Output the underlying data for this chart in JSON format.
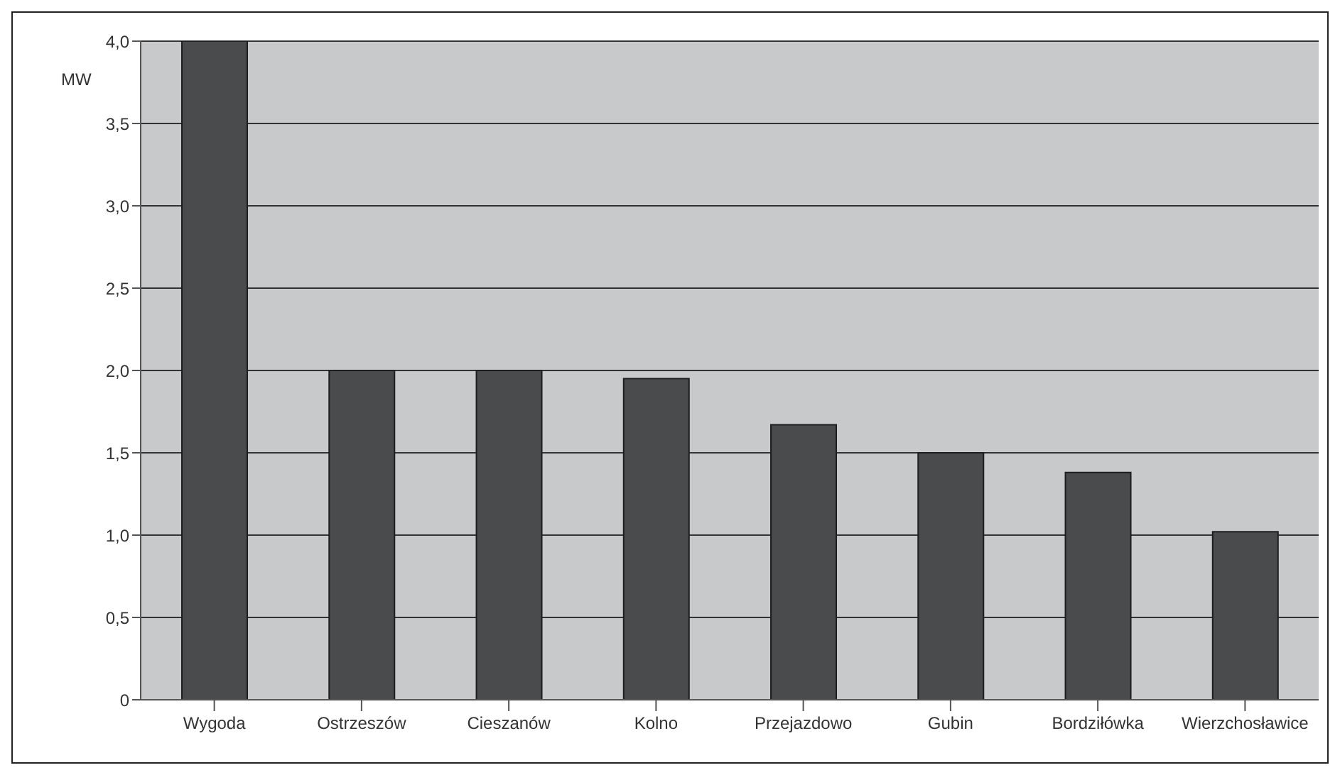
{
  "chart_data": {
    "type": "bar",
    "ylabel": "MW",
    "categories": [
      "Wygoda",
      "Ostrzeszów",
      "Cieszanów",
      "Kolno",
      "Przejazdowo",
      "Gubin",
      "Bordziłówka",
      "Wierzchosławice"
    ],
    "values": [
      4.0,
      2.0,
      2.0,
      1.95,
      1.67,
      1.5,
      1.38,
      1.02
    ],
    "color": "#4a4b4d",
    "ylim": [
      0,
      4
    ],
    "yticks": [
      {
        "value": 0,
        "label": "0"
      },
      {
        "value": 0.5,
        "label": "0,5"
      },
      {
        "value": 1,
        "label": "1,0"
      },
      {
        "value": 1.5,
        "label": "1,5"
      },
      {
        "value": 2,
        "label": "2,0"
      },
      {
        "value": 2.5,
        "label": "2,5"
      },
      {
        "value": 3,
        "label": "3,0"
      },
      {
        "value": 3.5,
        "label": "3,5"
      },
      {
        "value": 4,
        "label": "4,0"
      }
    ],
    "grid": "y"
  }
}
